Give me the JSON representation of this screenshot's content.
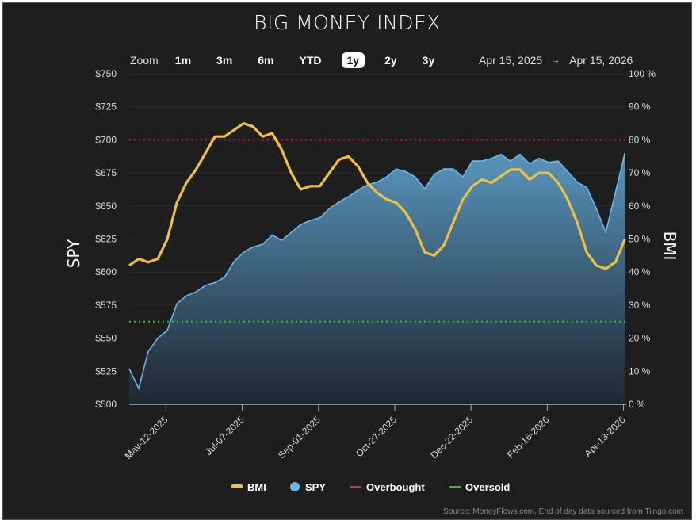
{
  "title": "BIG MONEY INDEX",
  "zoom": {
    "label": "Zoom",
    "buttons": [
      "1m",
      "3m",
      "6m",
      "YTD",
      "1y",
      "2y",
      "3y"
    ],
    "active": "1y"
  },
  "range": {
    "from": "Apr 15, 2025",
    "arrow": "→",
    "to": "Apr 15, 2026"
  },
  "source": "Source: MoneyFlows.com, End of day data sourced from Tiingo.com",
  "colors": {
    "background": "#1e1e1e",
    "bmi": "#f0c040",
    "spy": "#6bb8e8",
    "overbought": "#e0245e",
    "oversold": "#22cc22"
  },
  "chart_data": {
    "type": "line",
    "title": "BIG MONEY INDEX",
    "xlim": [
      "2025-04-15",
      "2026-04-15"
    ],
    "x_ticks": [
      {
        "date": "2025-05-12",
        "label": "May-12-2025"
      },
      {
        "date": "2025-07-07",
        "label": "Jul-07-2025"
      },
      {
        "date": "2025-09-01",
        "label": "Sep-01-2025"
      },
      {
        "date": "2025-10-27",
        "label": "Oct-27-2025"
      },
      {
        "date": "2025-12-22",
        "label": "Dec-22-2025"
      },
      {
        "date": "2026-02-16",
        "label": "Feb-16-2026"
      },
      {
        "date": "2026-04-13",
        "label": "Apr-13-2026"
      }
    ],
    "y_left": {
      "label": "SPY",
      "lim": [
        500,
        750
      ],
      "ticks": [
        "$500",
        "$525",
        "$550",
        "$575",
        "$600",
        "$625",
        "$650",
        "$675",
        "$700",
        "$725",
        "$750"
      ]
    },
    "y_right": {
      "label": "BMI",
      "lim": [
        0,
        100
      ],
      "ticks": [
        "0 %",
        "10 %",
        "20 %",
        "30 %",
        "40 %",
        "50 %",
        "60 %",
        "70 %",
        "80 %",
        "90 %",
        "100 %"
      ]
    },
    "x": [
      "2025-04-15",
      "2025-04-22",
      "2025-04-29",
      "2025-05-06",
      "2025-05-13",
      "2025-05-20",
      "2025-05-27",
      "2025-06-03",
      "2025-06-10",
      "2025-06-17",
      "2025-06-24",
      "2025-07-01",
      "2025-07-08",
      "2025-07-15",
      "2025-07-22",
      "2025-07-29",
      "2025-08-05",
      "2025-08-12",
      "2025-08-19",
      "2025-08-26",
      "2025-09-02",
      "2025-09-09",
      "2025-09-16",
      "2025-09-23",
      "2025-09-30",
      "2025-10-07",
      "2025-10-14",
      "2025-10-21",
      "2025-10-28",
      "2025-11-04",
      "2025-11-11",
      "2025-11-18",
      "2025-11-25",
      "2025-12-02",
      "2025-12-09",
      "2025-12-16",
      "2025-12-23",
      "2025-12-30",
      "2026-01-06",
      "2026-01-13",
      "2026-01-20",
      "2026-01-27",
      "2026-02-03",
      "2026-02-10",
      "2026-02-17",
      "2026-02-24",
      "2026-03-03",
      "2026-03-10",
      "2026-03-17",
      "2026-03-24",
      "2026-03-31",
      "2026-04-07",
      "2026-04-14"
    ],
    "series": [
      {
        "name": "SPY",
        "axis": "left",
        "type": "area",
        "values": [
          527,
          512,
          540,
          550,
          556,
          576,
          582,
          585,
          590,
          592,
          596,
          608,
          615,
          619,
          621,
          628,
          624,
          630,
          636,
          639,
          641,
          648,
          653,
          657,
          662,
          666,
          668,
          672,
          678,
          676,
          672,
          663,
          674,
          678,
          678,
          672,
          684,
          684,
          686,
          689,
          684,
          689,
          682,
          686,
          683,
          684,
          676,
          668,
          664,
          648,
          630,
          660,
          690
        ]
      },
      {
        "name": "BMI",
        "axis": "right",
        "type": "line",
        "values": [
          42,
          44,
          43,
          44,
          50,
          61,
          67,
          71,
          76,
          81,
          81,
          83,
          85,
          84,
          81,
          82,
          77,
          70,
          65,
          66,
          66,
          70,
          74,
          75,
          72,
          67,
          64,
          62,
          61,
          58,
          53,
          46,
          45,
          48,
          55,
          62,
          66,
          68,
          67,
          69,
          71,
          71,
          68,
          70,
          70,
          67,
          62,
          55,
          46,
          42,
          41,
          43,
          50
        ]
      }
    ],
    "thresholds": [
      {
        "name": "Overbought",
        "value": 80
      },
      {
        "name": "Oversold",
        "value": 25
      }
    ],
    "legend": {
      "placement": "bottom",
      "entries": [
        "BMI",
        "SPY",
        "Overbought",
        "Oversold"
      ]
    },
    "grid": true
  }
}
